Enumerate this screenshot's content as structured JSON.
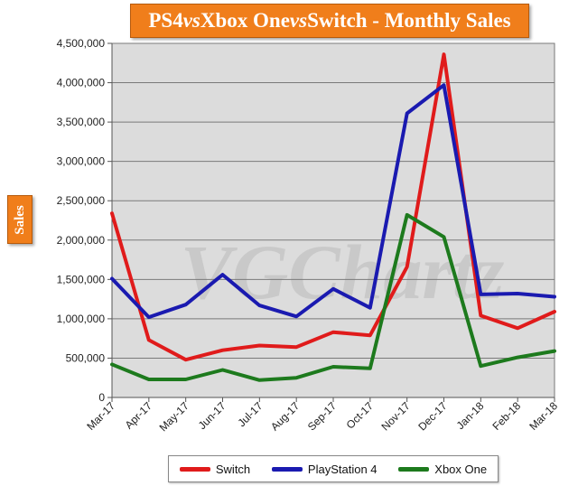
{
  "chart_data": {
    "type": "line",
    "title_parts": [
      "PS4 ",
      "vs",
      " Xbox One ",
      "vs",
      " Switch - Monthly Sales"
    ],
    "ylabel": "Sales",
    "xlabel": "",
    "ylim": [
      0,
      4500000
    ],
    "yticks": [
      0,
      500000,
      1000000,
      1500000,
      2000000,
      2500000,
      3000000,
      3500000,
      4000000,
      4500000
    ],
    "ytick_labels": [
      "0",
      "500,000",
      "1,000,000",
      "1,500,000",
      "2,000,000",
      "2,500,000",
      "3,000,000",
      "3,500,000",
      "4,000,000",
      "4,500,000"
    ],
    "categories": [
      "Mar-17",
      "Apr-17",
      "May-17",
      "Jun-17",
      "Jul-17",
      "Aug-17",
      "Sep-17",
      "Oct-17",
      "Nov-17",
      "Dec-17",
      "Jan-18",
      "Feb-18",
      "Mar-18"
    ],
    "grid": true,
    "legend_position": "bottom",
    "watermark": "VGChartz",
    "series": [
      {
        "name": "Switch",
        "color": "#e01b1b",
        "values": [
          2340000,
          730000,
          480000,
          600000,
          660000,
          640000,
          830000,
          790000,
          1660000,
          4360000,
          1040000,
          880000,
          1090000
        ]
      },
      {
        "name": "PlayStation 4",
        "color": "#1a1ab0",
        "values": [
          1510000,
          1020000,
          1180000,
          1560000,
          1170000,
          1030000,
          1380000,
          1140000,
          3610000,
          3970000,
          1310000,
          1320000,
          1280000
        ]
      },
      {
        "name": "Xbox One",
        "color": "#1d7a1d",
        "values": [
          420000,
          230000,
          230000,
          350000,
          220000,
          250000,
          390000,
          370000,
          2320000,
          2040000,
          400000,
          510000,
          590000
        ]
      }
    ]
  }
}
